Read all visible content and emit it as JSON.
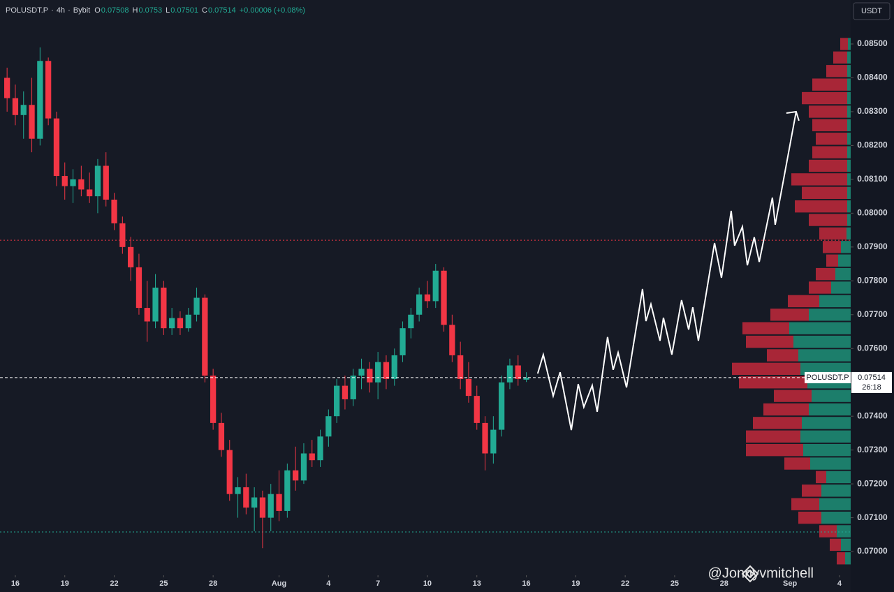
{
  "chart_data": {
    "type": "candlestick",
    "symbol": "POLUSDT.P",
    "interval": "4h",
    "exchange": "Bybit",
    "ohlc_labels": [
      "O",
      "H",
      "L",
      "C"
    ],
    "change": "+0.00006 (+0.08%)",
    "currency": "USDT",
    "countdown": "26:18",
    "watermark": "@Jonnyvmitchell",
    "up_color": "#22ab94",
    "down_color": "#f23645",
    "candles": {
      "x": [
        -0.5,
        0,
        0.5,
        1,
        1.5,
        2,
        2.5,
        3,
        3.5,
        4,
        4.5,
        5,
        5.5,
        6,
        6.5,
        7,
        7.5,
        8,
        8.5,
        9,
        9.5,
        10,
        10.5,
        11,
        11.5,
        12,
        12.5,
        13,
        13.5,
        14,
        14.5,
        15,
        15.5,
        16,
        16.5,
        17,
        17.5,
        18,
        18.5,
        19,
        19.5,
        20,
        20.5,
        21,
        21.5,
        22,
        22.5,
        23,
        23.5,
        24,
        24.5,
        25,
        25.5,
        26,
        26.5,
        27,
        27.5,
        28,
        28.5,
        29,
        29.5,
        30,
        30.5,
        31
      ],
      "open": [
        0.084,
        0.0834,
        0.0829,
        0.0832,
        0.0822,
        0.0845,
        0.0828,
        0.0811,
        0.0808,
        0.081,
        0.0807,
        0.0805,
        0.0814,
        0.0804,
        0.0797,
        0.079,
        0.0784,
        0.0772,
        0.0768,
        0.0778,
        0.0766,
        0.0769,
        0.0766,
        0.077,
        0.0775,
        0.0752,
        0.0738,
        0.073,
        0.0717,
        0.0719,
        0.0713,
        0.0716,
        0.071,
        0.0717,
        0.0712,
        0.0724,
        0.0721,
        0.0729,
        0.0727,
        0.0734,
        0.074,
        0.0749,
        0.0745,
        0.0752,
        0.0754,
        0.075,
        0.0756,
        0.0751,
        0.0758,
        0.0766,
        0.077,
        0.0776,
        0.0774,
        0.0783,
        0.0767,
        0.0758,
        0.0751,
        0.0746,
        0.0738,
        0.0729,
        0.0736,
        0.075,
        0.0755,
        0.07508
      ],
      "high": [
        0.0843,
        0.0838,
        0.0836,
        0.084,
        0.0849,
        0.0846,
        0.083,
        0.0815,
        0.0813,
        0.0814,
        0.0812,
        0.0816,
        0.0818,
        0.0806,
        0.0799,
        0.0793,
        0.0788,
        0.078,
        0.0782,
        0.078,
        0.0772,
        0.0771,
        0.0772,
        0.0778,
        0.0776,
        0.0754,
        0.0741,
        0.0733,
        0.0722,
        0.0723,
        0.0719,
        0.0718,
        0.072,
        0.0724,
        0.0726,
        0.0731,
        0.0732,
        0.0733,
        0.0736,
        0.0742,
        0.0751,
        0.0752,
        0.0754,
        0.0757,
        0.0756,
        0.0759,
        0.0758,
        0.076,
        0.0768,
        0.0772,
        0.0778,
        0.078,
        0.0785,
        0.0784,
        0.077,
        0.0762,
        0.0756,
        0.0749,
        0.074,
        0.074,
        0.0752,
        0.0757,
        0.0758,
        0.0753
      ],
      "low": [
        0.083,
        0.0826,
        0.0822,
        0.0818,
        0.082,
        0.0826,
        0.0808,
        0.0804,
        0.0803,
        0.0805,
        0.0803,
        0.08,
        0.0802,
        0.0795,
        0.0788,
        0.078,
        0.077,
        0.0762,
        0.0766,
        0.0764,
        0.0764,
        0.0764,
        0.0765,
        0.0768,
        0.075,
        0.0736,
        0.0728,
        0.0715,
        0.071,
        0.0711,
        0.0706,
        0.0701,
        0.0706,
        0.0709,
        0.071,
        0.0718,
        0.072,
        0.0725,
        0.0725,
        0.0731,
        0.0738,
        0.0742,
        0.0743,
        0.0748,
        0.0747,
        0.0745,
        0.0748,
        0.0749,
        0.0756,
        0.0763,
        0.0768,
        0.0772,
        0.0772,
        0.0765,
        0.0756,
        0.0748,
        0.0744,
        0.0736,
        0.0724,
        0.0726,
        0.0734,
        0.0748,
        0.0749,
        0.07501
      ],
      "close": [
        0.0834,
        0.0829,
        0.0832,
        0.0822,
        0.0845,
        0.0828,
        0.0811,
        0.0808,
        0.081,
        0.0807,
        0.0805,
        0.0814,
        0.0804,
        0.0797,
        0.079,
        0.0784,
        0.0772,
        0.0768,
        0.0778,
        0.0766,
        0.0769,
        0.0766,
        0.077,
        0.0775,
        0.0752,
        0.0738,
        0.073,
        0.0717,
        0.0719,
        0.0713,
        0.0716,
        0.071,
        0.0717,
        0.0712,
        0.0724,
        0.0721,
        0.0729,
        0.0727,
        0.0734,
        0.074,
        0.0749,
        0.0745,
        0.0752,
        0.0754,
        0.075,
        0.0756,
        0.0751,
        0.0758,
        0.0766,
        0.077,
        0.0776,
        0.0774,
        0.0783,
        0.0767,
        0.0758,
        0.0751,
        0.0746,
        0.0738,
        0.0729,
        0.0736,
        0.075,
        0.0755,
        0.0751,
        0.07514
      ]
    },
    "projection": {
      "color": "#ffffff",
      "x": [
        31.69,
        32.03,
        32.63,
        33.05,
        33.73,
        34.15,
        34.49,
        35.0,
        35.3,
        35.93,
        36.27,
        36.57,
        37.08,
        38.05,
        38.26,
        38.56,
        39.11,
        39.32,
        39.83,
        40.42,
        40.85,
        41.1,
        41.44,
        42.42,
        42.84,
        43.43,
        43.64,
        44.11,
        44.41,
        44.83,
        45.13,
        45.93,
        46.1,
        47.37
      ],
      "y": [
        0.07526,
        0.07582,
        0.0746,
        0.0753,
        0.07359,
        0.07495,
        0.07427,
        0.07491,
        0.07413,
        0.07634,
        0.07537,
        0.07588,
        0.07485,
        0.07776,
        0.07681,
        0.07731,
        0.07623,
        0.07691,
        0.07582,
        0.07743,
        0.07656,
        0.07722,
        0.07623,
        0.07912,
        0.07809,
        0.08007,
        0.07904,
        0.0796,
        0.07846,
        0.07929,
        0.07856,
        0.08046,
        0.07966,
        0.083
      ]
    },
    "levels": [
      {
        "value": 0.0792,
        "color": "#f23645"
      },
      {
        "value": 0.07058,
        "color": "#22ab94"
      }
    ],
    "profile": {
      "buy_color": "#1d8a73",
      "sell_color": "#b8283a",
      "prices": [
        0.0698,
        0.0702,
        0.0706,
        0.071,
        0.0714,
        0.0718,
        0.0722,
        0.0726,
        0.073,
        0.0734,
        0.0738,
        0.0742,
        0.0746,
        0.075,
        0.0754,
        0.0758,
        0.0762,
        0.0766,
        0.077,
        0.0774,
        0.0778,
        0.0782,
        0.0786,
        0.079,
        0.0794,
        0.0798,
        0.0802,
        0.0806,
        0.081,
        0.0814,
        0.0818,
        0.0822,
        0.0826,
        0.083,
        0.0834,
        0.0838,
        0.0842,
        0.0846,
        0.085
      ],
      "buy": [
        8,
        14,
        20,
        42,
        45,
        42,
        35,
        58,
        68,
        72,
        70,
        60,
        56,
        62,
        72,
        75,
        82,
        88,
        60,
        45,
        28,
        22,
        18,
        14,
        6,
        5,
        5,
        5,
        5,
        5,
        5,
        5,
        5,
        5,
        5,
        5,
        5,
        5,
        4
      ],
      "sell": [
        12,
        16,
        25,
        33,
        40,
        28,
        15,
        37,
        82,
        78,
        70,
        65,
        54,
        98,
        98,
        45,
        68,
        67,
        55,
        45,
        32,
        28,
        17,
        26,
        39,
        55,
        75,
        65,
        80,
        55,
        50,
        45,
        50,
        55,
        65,
        50,
        30,
        20,
        11
      ]
    },
    "xlim": [
      -0.93,
      50.68
    ],
    "ylim": [
      0.0693,
      0.0863
    ],
    "xticks": [
      {
        "value": 0,
        "label": "16"
      },
      {
        "value": 3,
        "label": "19"
      },
      {
        "value": 6,
        "label": "22"
      },
      {
        "value": 9,
        "label": "25"
      },
      {
        "value": 12,
        "label": "28"
      },
      {
        "value": 16,
        "label": "Aug"
      },
      {
        "value": 19,
        "label": "4"
      },
      {
        "value": 22,
        "label": "7"
      },
      {
        "value": 25,
        "label": "10"
      },
      {
        "value": 28,
        "label": "13"
      },
      {
        "value": 31,
        "label": "16"
      },
      {
        "value": 34,
        "label": "19"
      },
      {
        "value": 37,
        "label": "22"
      },
      {
        "value": 40,
        "label": "25"
      },
      {
        "value": 43,
        "label": "28"
      },
      {
        "value": 47,
        "label": "Sep"
      },
      {
        "value": 50,
        "label": "4"
      }
    ],
    "yticks": [
      {
        "value": 0.07,
        "label": "0.07000"
      },
      {
        "value": 0.071,
        "label": "0.07100"
      },
      {
        "value": 0.072,
        "label": "0.07200"
      },
      {
        "value": 0.073,
        "label": "0.07300"
      },
      {
        "value": 0.074,
        "label": "0.07400"
      },
      {
        "value": 0.075,
        "label": "0.07500"
      },
      {
        "value": 0.076,
        "label": "0.07600"
      },
      {
        "value": 0.077,
        "label": "0.07700"
      },
      {
        "value": 0.078,
        "label": "0.07800"
      },
      {
        "value": 0.079,
        "label": "0.07900"
      },
      {
        "value": 0.08,
        "label": "0.08000"
      },
      {
        "value": 0.081,
        "label": "0.08100"
      },
      {
        "value": 0.082,
        "label": "0.08200"
      },
      {
        "value": 0.083,
        "label": "0.08300"
      },
      {
        "value": 0.084,
        "label": "0.08400"
      },
      {
        "value": 0.085,
        "label": "0.08500"
      }
    ]
  }
}
